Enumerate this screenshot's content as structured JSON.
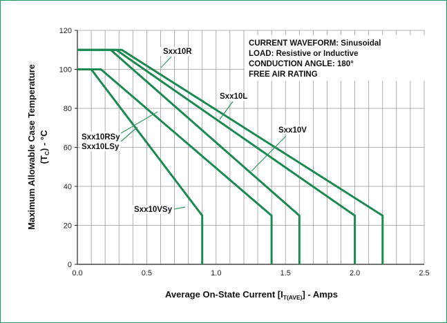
{
  "chart_data": {
    "type": "line",
    "xlabel": "Average On-State Current [I",
    "xlabel_sub": "T(AVE)",
    "xlabel_tail": "] - Amps",
    "ylabel_line1": "Maximum Allowable Case Temperature",
    "ylabel_line2_pre": "(T",
    "ylabel_line2_sub": "C",
    "ylabel_line2_post": ") - °C",
    "xlim": [
      0,
      2.5
    ],
    "ylim": [
      0,
      120
    ],
    "x_ticks": [
      "0.0",
      "0.5",
      "1.0",
      "1.5",
      "2.0",
      "2.5"
    ],
    "y_ticks": [
      "0",
      "20",
      "40",
      "60",
      "80",
      "100",
      "120"
    ],
    "grid": true,
    "notes": [
      "CURRENT WAVEFORM: Sinusoidal",
      "LOAD: Resistive or Inductive",
      "CONDUCTION ANGLE: 180°",
      "FREE AIR RATING"
    ],
    "series": [
      {
        "name": "Sxx10R",
        "points": [
          [
            0,
            110
          ],
          [
            0.32,
            110
          ],
          [
            2.2,
            25
          ],
          [
            2.2,
            0
          ]
        ]
      },
      {
        "name": "Sxx10V",
        "points": [
          [
            0,
            110
          ],
          [
            0.28,
            110
          ],
          [
            2.0,
            25
          ],
          [
            2.0,
            0
          ]
        ]
      },
      {
        "name": "Sxx10L",
        "points": [
          [
            0,
            110
          ],
          [
            0.24,
            110
          ],
          [
            1.6,
            25
          ],
          [
            1.6,
            0
          ]
        ]
      },
      {
        "name": "Sxx10RSy",
        "points": [
          [
            0,
            100
          ],
          [
            0.17,
            100
          ],
          [
            1.4,
            25
          ],
          [
            1.4,
            0
          ]
        ]
      },
      {
        "name": "Sxx10VSy",
        "points": [
          [
            0,
            100
          ],
          [
            0.1,
            100
          ],
          [
            0.9,
            25
          ],
          [
            0.9,
            0
          ]
        ]
      }
    ],
    "labels": {
      "sxx10r": "Sxx10R",
      "sxx10l": "Sxx10L",
      "sxx10v": "Sxx10V",
      "sxx10rsy": "Sxx10RSy",
      "sxx10lsy": "Sxx10LSy",
      "sxx10vsy": "Sxx10VSy"
    },
    "colors": {
      "curve": "#1a8a50",
      "grid": "#999999",
      "frame": "#1a9a5e"
    }
  }
}
